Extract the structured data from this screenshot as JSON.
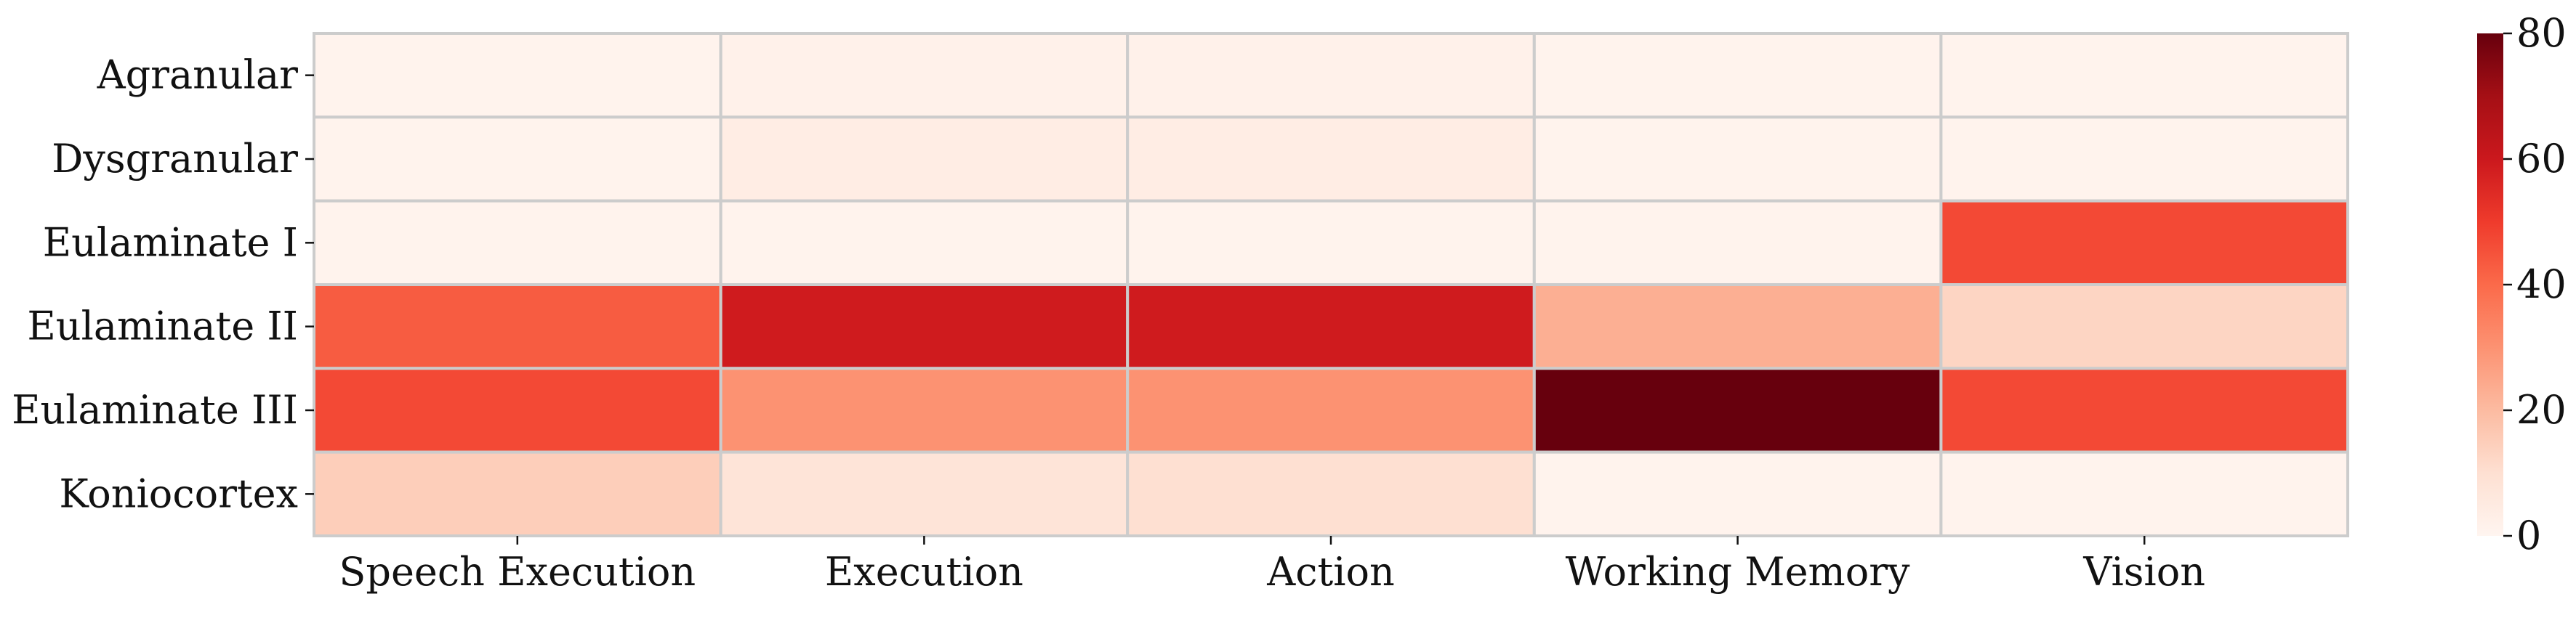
{
  "chart_data": {
    "type": "heatmap",
    "rows": [
      "Agranular",
      "Dysgranular",
      "Eulaminate I",
      "Eulaminate II",
      "Eulaminate III",
      "Koniocortex"
    ],
    "columns": [
      "Speech Execution",
      "Execution",
      "Action",
      "Working Memory",
      "Vision"
    ],
    "values": [
      [
        1,
        2,
        2,
        1,
        1
      ],
      [
        1,
        4,
        4,
        1,
        1
      ],
      [
        1,
        1,
        1,
        1,
        47
      ],
      [
        43,
        59,
        59,
        23,
        13
      ],
      [
        47,
        30,
        30,
        80,
        47
      ],
      [
        15,
        8,
        10,
        1,
        1
      ]
    ],
    "colorbar": {
      "min": 0,
      "max": 80,
      "ticks": [
        0,
        20,
        40,
        60,
        80
      ],
      "colormap": "Reds"
    },
    "title": "",
    "xlabel": "",
    "ylabel": "",
    "grid_line_color": "#cccccc",
    "legend": "colorbar-right"
  }
}
